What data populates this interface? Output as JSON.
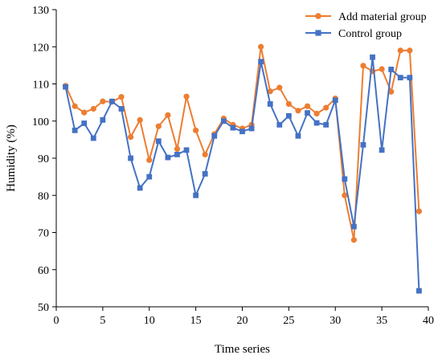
{
  "chart_data": {
    "type": "line",
    "title": "",
    "xlabel": "Time series",
    "ylabel": "Humidity (%)",
    "xlim": [
      0,
      40
    ],
    "ylim": [
      50,
      130
    ],
    "xticks": [
      0,
      5,
      10,
      15,
      20,
      25,
      30,
      35,
      40
    ],
    "yticks": [
      50,
      60,
      70,
      80,
      90,
      100,
      110,
      120,
      130
    ],
    "grid": false,
    "legend_position": "top-right",
    "x": [
      1,
      2,
      3,
      4,
      5,
      6,
      7,
      8,
      9,
      10,
      11,
      12,
      13,
      14,
      15,
      16,
      17,
      18,
      19,
      20,
      21,
      22,
      23,
      24,
      25,
      26,
      27,
      28,
      29,
      30,
      31,
      32,
      33,
      34,
      35,
      36,
      37,
      38,
      39
    ],
    "series": [
      {
        "name": "Add material group",
        "color": "#ed7d31",
        "marker": "circle",
        "values": [
          109.5,
          104,
          102.3,
          103.3,
          105.3,
          105.2,
          106.5,
          95.7,
          100.3,
          89.5,
          98.6,
          101.6,
          92.5,
          106.6,
          97.5,
          91,
          96.5,
          100.7,
          99,
          98,
          99,
          120,
          108,
          109,
          104.6,
          102.8,
          104,
          102,
          103.6,
          106.1,
          80,
          68,
          114.9,
          113.4,
          114,
          107.9,
          119,
          119,
          75.7
        ]
      },
      {
        "name": "Control group",
        "color": "#4472c4",
        "marker": "square",
        "values": [
          109.2,
          97.5,
          99.4,
          95.4,
          100.3,
          105.3,
          103.3,
          90,
          82,
          85,
          94.6,
          90.2,
          91,
          92.2,
          80,
          85.8,
          96,
          100,
          98.2,
          97.2,
          98,
          116,
          104.6,
          99,
          101.4,
          96,
          102.2,
          99.5,
          99,
          105.6,
          84.4,
          71.6,
          93.6,
          117.2,
          92.2,
          113.9,
          111.7,
          111.7,
          54.3
        ]
      }
    ]
  }
}
